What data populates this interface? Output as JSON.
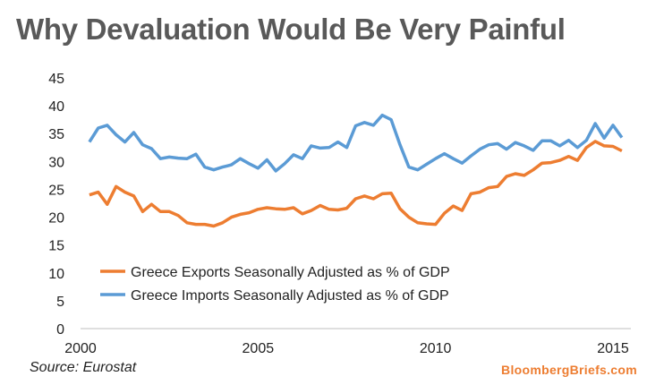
{
  "chart_data": {
    "type": "line",
    "title": "Why Devaluation Would Be Very Painful",
    "xlabel": "",
    "ylabel": "",
    "ylim": [
      0,
      45
    ],
    "yticks": [
      0,
      5,
      10,
      15,
      20,
      25,
      30,
      35,
      40,
      45
    ],
    "xlim": [
      2000,
      2015.4
    ],
    "xticks": [
      2000,
      2005,
      2010,
      2015
    ],
    "grid": false,
    "legend": "lower-left",
    "x_start": 2000.25,
    "x_step": 0.25,
    "series": [
      {
        "name": "Greece Exports Seasonally Adjusted as % of GDP",
        "color": "#ED7D31",
        "values": [
          24,
          24.5,
          22.3,
          25.5,
          24.5,
          23.8,
          21,
          22.3,
          21,
          21,
          20.3,
          19,
          18.7,
          18.7,
          18.4,
          19,
          20,
          20.5,
          20.8,
          21.4,
          21.7,
          21.5,
          21.4,
          21.7,
          20.6,
          21.2,
          22.1,
          21.4,
          21.3,
          21.6,
          23.3,
          23.8,
          23.3,
          24.2,
          24.3,
          21.5,
          20,
          19,
          18.8,
          18.7,
          20.7,
          22,
          21.2,
          24.2,
          24.5,
          25.3,
          25.5,
          27.3,
          27.8,
          27.5,
          28.5,
          29.7,
          29.8,
          30.2,
          30.9,
          30.2,
          32.5,
          33.6,
          32.8,
          32.7,
          31.9
        ]
      },
      {
        "name": "Greece Imports Seasonally Adjusted as % of GDP",
        "color": "#5B9BD5",
        "values": [
          33.5,
          36,
          36.5,
          34.8,
          33.5,
          35.2,
          33,
          32.3,
          30.5,
          30.8,
          30.6,
          30.5,
          31.3,
          29,
          28.5,
          29,
          29.4,
          30.5,
          29.6,
          28.8,
          30.3,
          28.3,
          29.6,
          31.2,
          30.5,
          32.8,
          32.4,
          32.5,
          33.5,
          32.5,
          36.4,
          37,
          36.5,
          38.3,
          37.5,
          33,
          29,
          28.5,
          29.5,
          30.5,
          31.4,
          30.5,
          29.7,
          31,
          32.2,
          33,
          33.2,
          32.2,
          33.4,
          32.8,
          32,
          33.7,
          33.7,
          32.8,
          33.8,
          32.5,
          33.8,
          36.8,
          34.2,
          36.5,
          34.3
        ]
      }
    ],
    "source": "Source: Eurostat",
    "brand": "BloombergBriefs.com"
  }
}
